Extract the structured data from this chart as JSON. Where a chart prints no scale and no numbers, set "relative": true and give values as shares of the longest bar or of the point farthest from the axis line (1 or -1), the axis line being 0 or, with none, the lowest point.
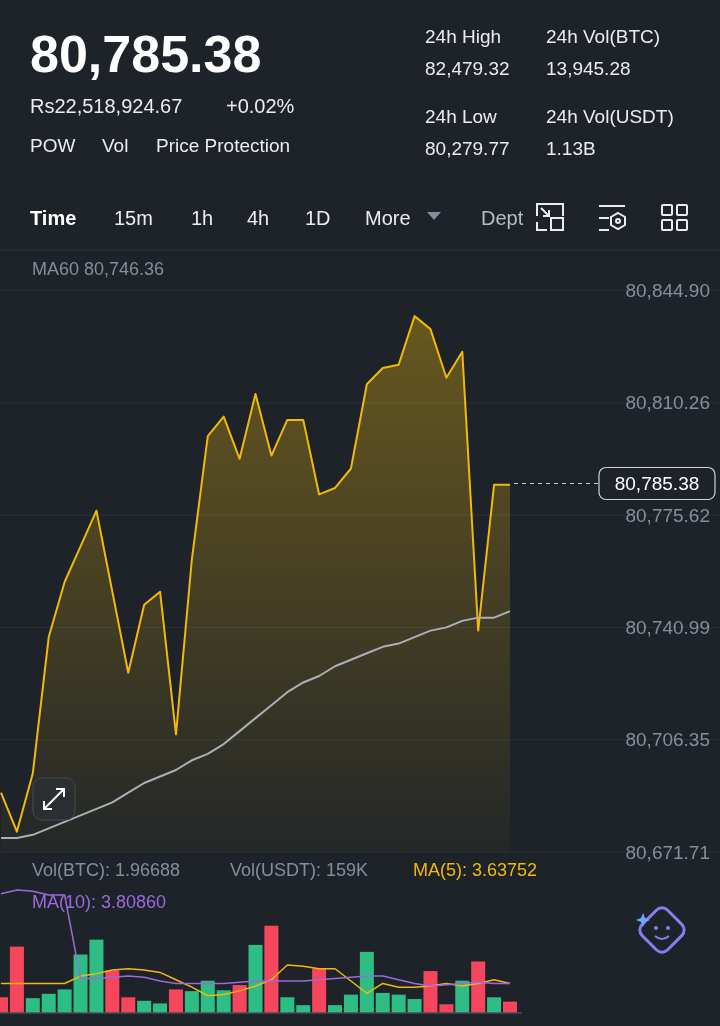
{
  "chart_data": [
    {
      "type": "other",
      "title": "80,785.38",
      "annotations": [
        "Rs22,518,924.67",
        "+0.02%",
        "POW",
        "Vol",
        "Price Protection",
        "24h High",
        "82,479.32",
        "24h Vol(BTC)",
        "13,945.28",
        "24h Low",
        "80,279.77",
        "24h Vol(USDT)",
        "1.13B",
        "Time",
        "15m",
        "1h",
        "4h",
        "1D",
        "More",
        "Dept"
      ]
    },
    {
      "type": "line",
      "categories": [
        null,
        null,
        null,
        null,
        null,
        null,
        null,
        null,
        null,
        null,
        null,
        null,
        null,
        null,
        null,
        null,
        null,
        null,
        null,
        null,
        null,
        null,
        null,
        null,
        null,
        null,
        null,
        null,
        null,
        null,
        null,
        null,
        null
      ],
      "series": [
        {
          "type": "area",
          "color": "#f0b90b",
          "values": [
            80690,
            80678,
            80696,
            80738,
            80755,
            80766,
            80777,
            80752,
            80727,
            80748,
            80752,
            80708,
            80762,
            80800,
            80806,
            80793,
            80813,
            80794,
            80805,
            80805,
            80782,
            80784,
            80790,
            80816,
            80821,
            80822,
            80837,
            80833,
            80818,
            80826,
            80740,
            80785,
            80785
          ]
        },
        {
          "type": "line",
          "color": "#aab0b8",
          "values": [
            80676,
            80676,
            80677,
            80679,
            80681,
            80683,
            80685,
            80687,
            80690,
            80693,
            80695,
            80697,
            80700,
            80702,
            80705,
            80709,
            80713,
            80717,
            80721,
            80724,
            80726,
            80729,
            80731,
            80733,
            80735,
            80736,
            80738,
            80740,
            80741,
            80743,
            80744,
            80744,
            80746
          ]
        }
      ],
      "ylim": [
        80671.71,
        80857.4
      ],
      "yticks": [
        {
          "value": 80671.71,
          "label": "80,671.71"
        },
        {
          "value": 80706.35,
          "label": "80,706.35"
        },
        {
          "value": 80740.99,
          "label": "80,740.99"
        },
        {
          "value": 80775.62,
          "label": "80,775.62"
        },
        {
          "value": 80810.26,
          "label": "80,810.26"
        },
        {
          "value": 80844.9,
          "label": "80,844.90"
        }
      ],
      "grid": "y",
      "tick_labels": "y",
      "annotations": [
        "MA60 80,746.36"
      ],
      "ref_lines": [
        {
          "axis": "y",
          "value": 80785.38,
          "label": "80,785.38",
          "color": "#cfd3d8",
          "line_style": "dashed"
        }
      ]
    },
    {
      "type": "bar",
      "relative": true,
      "categories": [
        null,
        null,
        null,
        null,
        null,
        null,
        null,
        null,
        null,
        null,
        null,
        null,
        null,
        null,
        null,
        null,
        null,
        null,
        null,
        null,
        null,
        null,
        null,
        null,
        null,
        null,
        null,
        null,
        null,
        null,
        null,
        null,
        null
      ],
      "series": [
        {
          "type": "bar",
          "colors": [
            "#f6465d",
            "#f6465d",
            "#2ebd85",
            "#2ebd85",
            "#2ebd85",
            "#2ebd85",
            "#2ebd85",
            "#f6465d",
            "#f6465d",
            "#2ebd85",
            "#2ebd85",
            "#f6465d",
            "#2ebd85",
            "#2ebd85",
            "#2ebd85",
            "#f6465d",
            "#2ebd85",
            "#f6465d",
            "#2ebd85",
            "#2ebd85",
            "#f6465d",
            "#2ebd85",
            "#2ebd85",
            "#2ebd85",
            "#2ebd85",
            "#2ebd85",
            "#2ebd85",
            "#f6465d",
            "#f6465d",
            "#2ebd85",
            "#f6465d",
            "#2ebd85",
            "#f6465d"
          ],
          "values": [
            0.18,
            0.76,
            0.17,
            0.22,
            0.27,
            0.67,
            0.84,
            0.49,
            0.18,
            0.14,
            0.11,
            0.27,
            0.25,
            0.37,
            0.26,
            0.32,
            0.78,
            1,
            0.18,
            0.09,
            0.51,
            0.09,
            0.21,
            0.7,
            0.23,
            0.21,
            0.16,
            0.48,
            0.1,
            0.37,
            0.59,
            0.18,
            0.13
          ]
        }
      ],
      "annotations": [
        "Vol(BTC): 1.96688",
        "Vol(USDT): 159K"
      ]
    },
    {
      "type": "line",
      "relative": true,
      "categories": [
        null,
        null,
        null,
        null,
        null,
        null,
        null,
        null,
        null,
        null,
        null,
        null,
        null,
        null,
        null,
        null,
        null,
        null,
        null,
        null,
        null,
        null,
        null,
        null,
        null,
        null,
        null,
        null,
        null,
        null,
        null,
        null,
        null
      ],
      "series": [
        {
          "type": "line",
          "color": "#f0b90b",
          "values": [
            0.24,
            0.24,
            0.24,
            0.24,
            0.24,
            0.3,
            0.32,
            0.35,
            0.36,
            0.35,
            0.33,
            0.27,
            0.21,
            0.14,
            0.15,
            0.18,
            0.22,
            0.27,
            0.39,
            0.38,
            0.36,
            0.36,
            0.26,
            0.16,
            0.24,
            0.21,
            0.21,
            0.22,
            0.24,
            0.22,
            0.24,
            0.27,
            0.24
          ]
        },
        {
          "type": "line",
          "color": "#9c6ade",
          "values": [
            0.97,
            1,
            0.99,
            0.96,
            0.96,
            0.28,
            0.28,
            0.29,
            0.3,
            0.29,
            0.26,
            0.24,
            0.24,
            0.24,
            0.24,
            0.25,
            0.26,
            0.26,
            0.26,
            0.26,
            0.27,
            0.28,
            0.29,
            0.3,
            0.3,
            0.27,
            0.24,
            0.22,
            0.23,
            0.24,
            0.25,
            0.24,
            0.24
          ]
        }
      ],
      "annotations": [
        "MA(5): 3.63752",
        "MA(10): 3.80860"
      ]
    }
  ]
}
